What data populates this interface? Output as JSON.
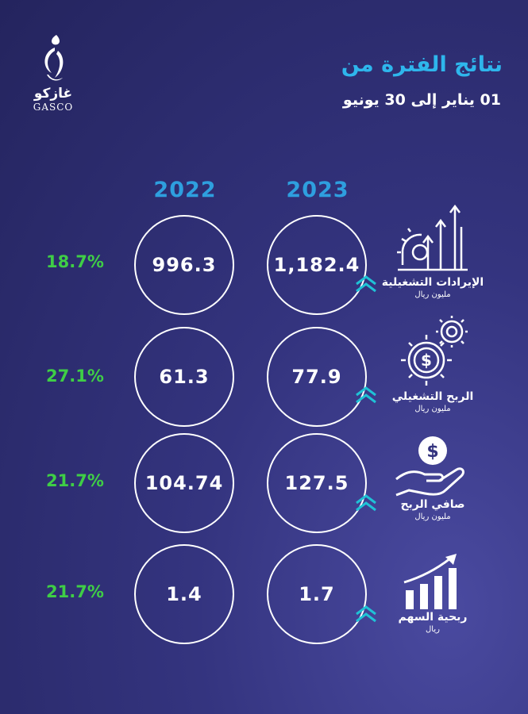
{
  "logo": {
    "arabic": "غازكو",
    "english": "GASCO"
  },
  "header": {
    "title": "نتائج الفترة من",
    "subtitle": "01 يناير إلى 30 يونيو"
  },
  "years": [
    "2022",
    "2023"
  ],
  "rows": [
    {
      "metric": "الإيرادات التشغيلية",
      "unit": "مليون ريال",
      "icon": "gear-growth-arrows-icon",
      "v2022": "996.3",
      "v2023": "1,182.4",
      "change": "18.7%"
    },
    {
      "metric": "الربح التشغيلي",
      "unit": "مليون ريال",
      "icon": "gears-dollar-icon",
      "v2022": "61.3",
      "v2023": "77.9",
      "change": "27.1%"
    },
    {
      "metric": "صافي الربح",
      "unit": "مليون ريال",
      "icon": "hand-dollar-coin-icon",
      "v2022": "104.74",
      "v2023": "127.5",
      "change": "21.7%"
    },
    {
      "metric": "ربحية السهم",
      "unit": "ريال",
      "icon": "bar-chart-growth-icon",
      "v2022": "1.4",
      "v2023": "1.7",
      "change": "21.7%"
    }
  ],
  "colors": {
    "accent": "#2eb6ec",
    "year": "#2e9fdf",
    "positive": "#3fce46",
    "chevron": "#1fc2d6"
  }
}
